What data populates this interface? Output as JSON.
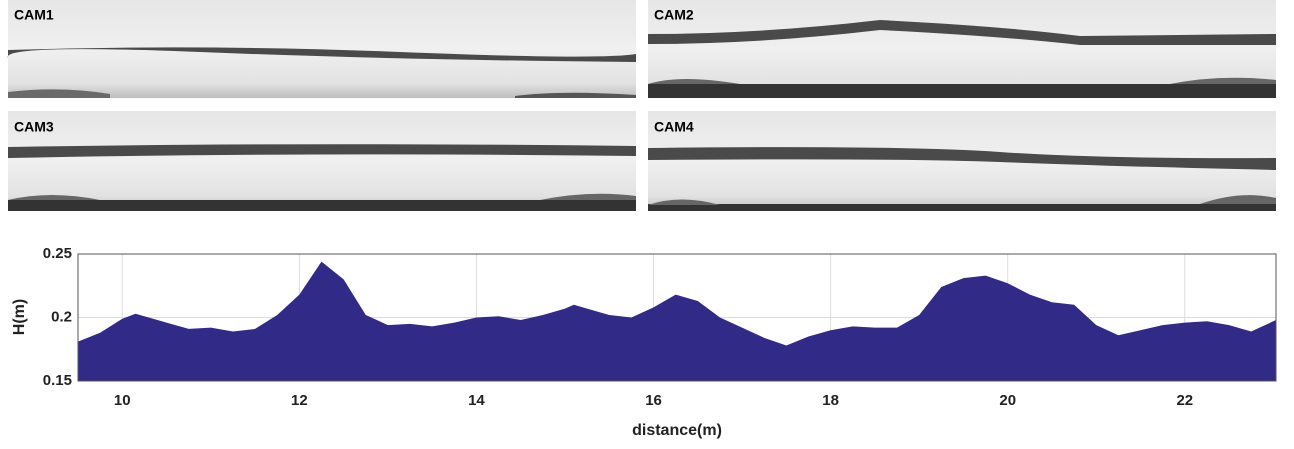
{
  "cameras": [
    {
      "label": "CAM1"
    },
    {
      "label": "CAM2"
    },
    {
      "label": "CAM3"
    },
    {
      "label": "CAM4"
    }
  ],
  "chart_data": {
    "type": "area",
    "x_label": "distance(m)",
    "y_label": "H(m)",
    "x": [
      9.5,
      9.75,
      10.0,
      10.15,
      10.5,
      10.75,
      11.0,
      11.25,
      11.5,
      11.75,
      12.0,
      12.25,
      12.5,
      12.75,
      13.0,
      13.25,
      13.5,
      13.75,
      14.0,
      14.25,
      14.5,
      14.75,
      15.0,
      15.1,
      15.25,
      15.5,
      15.75,
      16.0,
      16.25,
      16.5,
      16.75,
      17.0,
      17.25,
      17.5,
      17.75,
      18.0,
      18.25,
      18.5,
      18.75,
      19.0,
      19.25,
      19.5,
      19.75,
      20.0,
      20.25,
      20.5,
      20.75,
      21.0,
      21.25,
      21.5,
      21.75,
      22.0,
      22.25,
      22.5,
      22.75,
      23.03
    ],
    "values": [
      0.181,
      0.188,
      0.199,
      0.203,
      0.196,
      0.191,
      0.192,
      0.189,
      0.191,
      0.202,
      0.218,
      0.244,
      0.23,
      0.202,
      0.194,
      0.195,
      0.193,
      0.196,
      0.2,
      0.201,
      0.198,
      0.202,
      0.207,
      0.21,
      0.207,
      0.202,
      0.2,
      0.208,
      0.218,
      0.213,
      0.2,
      0.192,
      0.184,
      0.178,
      0.185,
      0.19,
      0.193,
      0.192,
      0.192,
      0.202,
      0.224,
      0.231,
      0.233,
      0.227,
      0.218,
      0.212,
      0.21,
      0.194,
      0.186,
      0.19,
      0.194,
      0.196,
      0.197,
      0.194,
      0.189,
      0.198
    ],
    "color": "#312a87",
    "xlim": [
      9.5,
      23.03
    ],
    "ylim": [
      0.15,
      0.25
    ],
    "xticks": [
      10,
      12,
      14,
      16,
      18,
      20,
      22
    ],
    "yticks": [
      0.15,
      0.2,
      0.25
    ],
    "grid": true
  }
}
